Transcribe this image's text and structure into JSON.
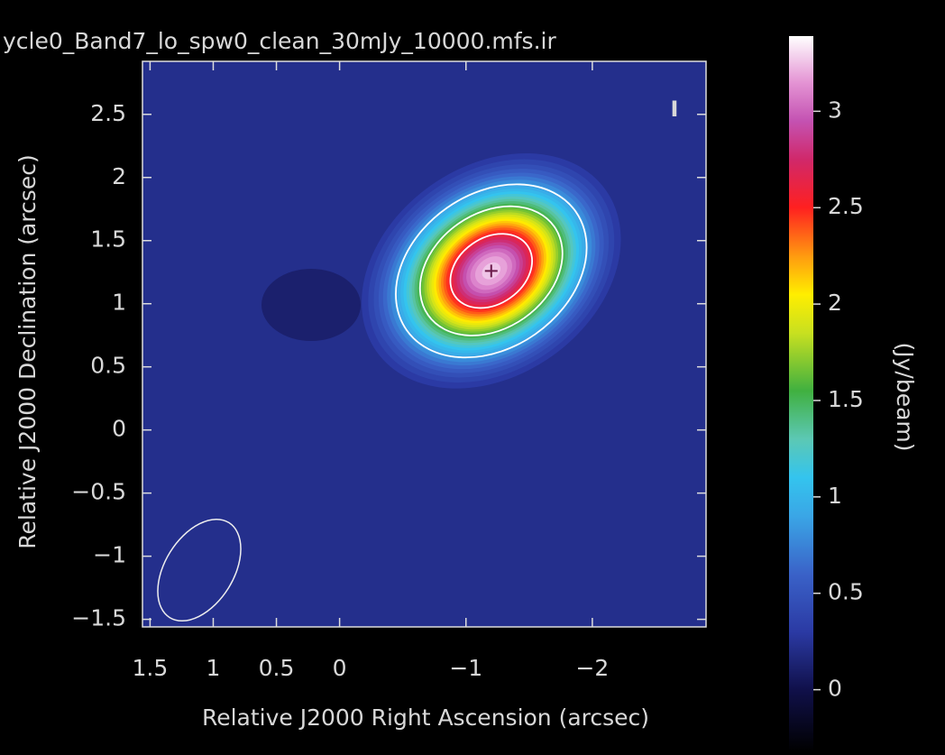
{
  "chart_data": {
    "type": "image",
    "title": "ycle0_Band7_lo_spw0_clean_30mJy_10000.mfs.ir",
    "x_label": "Relative J2000 Right Ascension (arcsec)",
    "y_label": "Relative J2000 Declination (arcsec)",
    "colorbar_label": "(Jy/beam)",
    "stokes": "I",
    "xlim": [
      1.56,
      -2.9
    ],
    "ylim": [
      -1.56,
      2.92
    ],
    "xticks": [
      1.5,
      1,
      0.5,
      0,
      {
        "value": -1,
        "label": "−1"
      },
      {
        "value": -2,
        "label": "−2"
      }
    ],
    "yticks": [
      {
        "value": -1.5,
        "label": "−1.5"
      },
      {
        "value": -1,
        "label": "−1"
      },
      {
        "value": -0.5,
        "label": "−0.5"
      },
      0,
      0.5,
      1,
      1.5,
      2,
      2.5
    ],
    "clim": [
      -0.32,
      3.39
    ],
    "cticks": [
      0,
      0.5,
      1,
      1.5,
      2,
      2.5,
      3
    ],
    "colormap": [
      {
        "value": -0.32,
        "color": "#000000"
      },
      {
        "value": 0,
        "color": "#10104a"
      },
      {
        "value": 0.3,
        "color": "#2b3aa4"
      },
      {
        "value": 0.6,
        "color": "#3a62c8"
      },
      {
        "value": 0.9,
        "color": "#3aa6e6"
      },
      {
        "value": 1.1,
        "color": "#34c4ee"
      },
      {
        "value": 1.3,
        "color": "#5cc8b4"
      },
      {
        "value": 1.55,
        "color": "#40b040"
      },
      {
        "value": 1.85,
        "color": "#c8e020"
      },
      {
        "value": 2.05,
        "color": "#ffee00"
      },
      {
        "value": 2.25,
        "color": "#ff9a10"
      },
      {
        "value": 2.5,
        "color": "#ff2020"
      },
      {
        "value": 2.75,
        "color": "#d0286a"
      },
      {
        "value": 2.95,
        "color": "#c452b2"
      },
      {
        "value": 3.15,
        "color": "#e494d4"
      },
      {
        "value": 3.39,
        "color": "#ffffff"
      }
    ],
    "source": {
      "x": -1.2,
      "y": 1.26,
      "peak": 3.3
    },
    "contours": [
      0.9,
      1.6,
      2.6
    ]
  }
}
